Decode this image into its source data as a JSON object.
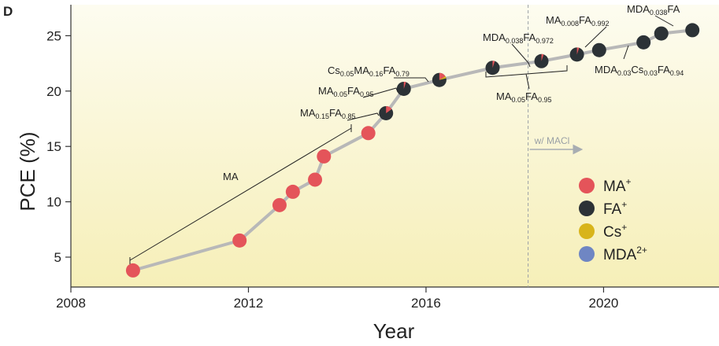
{
  "panel_label": "D",
  "colors": {
    "MA": "#e4545a",
    "FA": "#2c3236",
    "Cs": "#d8b41a",
    "MDA": "#6f86c3",
    "line": "#b8b8b8",
    "bg_top": "#fdfcf0",
    "bg_bottom": "#f6efb8"
  },
  "chart_data": {
    "type": "scatter",
    "xlabel": "Year",
    "ylabel": "PCE (%)",
    "xlim": [
      2008,
      2022.6
    ],
    "ylim": [
      2.3,
      27.8
    ],
    "xticks": [
      "2008",
      "2012",
      "2016",
      "2020"
    ],
    "yticks": [
      "5",
      "10",
      "15",
      "20",
      "25"
    ],
    "grid": false,
    "legend_placement": "bottom-right",
    "points": [
      {
        "x": 2009.4,
        "y": 3.8,
        "cation": "MA"
      },
      {
        "x": 2011.8,
        "y": 6.5,
        "cation": "MA"
      },
      {
        "x": 2012.7,
        "y": 9.7,
        "cation": "MA"
      },
      {
        "x": 2013.0,
        "y": 10.9,
        "cation": "MA"
      },
      {
        "x": 2013.5,
        "y": 12.0,
        "cation": "MA"
      },
      {
        "x": 2013.7,
        "y": 14.1,
        "cation": "MA"
      },
      {
        "x": 2014.7,
        "y": 16.2,
        "cation": "MA"
      },
      {
        "x": 2015.1,
        "y": 18.0,
        "cation": "FA",
        "mix": [
          {
            "c": "MA",
            "f": 0.15
          }
        ]
      },
      {
        "x": 2015.5,
        "y": 20.2,
        "cation": "FA",
        "mix": [
          {
            "c": "MA",
            "f": 0.05
          }
        ]
      },
      {
        "x": 2016.3,
        "y": 21.0,
        "cation": "FA",
        "mix": [
          {
            "c": "MA",
            "f": 0.16
          },
          {
            "c": "Cs",
            "f": 0.05
          }
        ]
      },
      {
        "x": 2017.5,
        "y": 22.1,
        "cation": "FA",
        "mix": [
          {
            "c": "MA",
            "f": 0.05
          }
        ]
      },
      {
        "x": 2018.6,
        "y": 22.7,
        "cation": "FA",
        "mix": [
          {
            "c": "MA",
            "f": 0.05
          }
        ]
      },
      {
        "x": 2019.4,
        "y": 23.3,
        "cation": "FA",
        "mix": [
          {
            "c": "MA",
            "f": 0.05
          }
        ]
      },
      {
        "x": 2019.9,
        "y": 23.7,
        "cation": "FA"
      },
      {
        "x": 2020.9,
        "y": 24.4,
        "cation": "FA"
      },
      {
        "x": 2021.3,
        "y": 25.2,
        "cation": "FA"
      },
      {
        "x": 2022.0,
        "y": 25.5,
        "cation": "FA"
      }
    ],
    "macl_year": 2018.3,
    "macl_label": "w/ MACl",
    "annotations": [
      {
        "id": "ma",
        "parts": [
          [
            "MA",
            false
          ]
        ]
      },
      {
        "id": "ma015",
        "parts": [
          [
            "MA",
            false
          ],
          [
            "0.15",
            true
          ],
          [
            "FA",
            false
          ],
          [
            "0.85",
            true
          ]
        ]
      },
      {
        "id": "ma005a",
        "parts": [
          [
            "MA",
            false
          ],
          [
            "0.05",
            true
          ],
          [
            "FA",
            false
          ],
          [
            "0.95",
            true
          ]
        ]
      },
      {
        "id": "cs",
        "parts": [
          [
            "Cs",
            false
          ],
          [
            "0.05",
            true
          ],
          [
            "MA",
            false
          ],
          [
            "0.16",
            true
          ],
          [
            "FA",
            false
          ],
          [
            "0.79",
            true
          ]
        ]
      },
      {
        "id": "mda972",
        "parts": [
          [
            "MDA",
            false
          ],
          [
            "0.038",
            true
          ],
          [
            "FA",
            false
          ],
          [
            "0.972",
            true
          ]
        ]
      },
      {
        "id": "ma008",
        "parts": [
          [
            "MA",
            false
          ],
          [
            "0.008",
            true
          ],
          [
            "FA",
            false
          ],
          [
            "0.992",
            true
          ]
        ]
      },
      {
        "id": "mdafa",
        "parts": [
          [
            "MDA",
            false
          ],
          [
            "0.038",
            true
          ],
          [
            "FA",
            false
          ]
        ]
      },
      {
        "id": "ma005b",
        "parts": [
          [
            "MA",
            false
          ],
          [
            "0.05",
            true
          ],
          [
            "FA",
            false
          ],
          [
            "0.95",
            true
          ]
        ]
      },
      {
        "id": "mdacs",
        "parts": [
          [
            "MDA",
            false
          ],
          [
            "0.03",
            true
          ],
          [
            "Cs",
            false
          ],
          [
            "0.03",
            true
          ],
          [
            "FA",
            false
          ],
          [
            "0.94",
            true
          ]
        ]
      }
    ],
    "legend": [
      {
        "cation": "MA",
        "label": "MA",
        "sup": "+"
      },
      {
        "cation": "FA",
        "label": "FA",
        "sup": "+"
      },
      {
        "cation": "Cs",
        "label": "Cs",
        "sup": "+"
      },
      {
        "cation": "MDA",
        "label": "MDA",
        "sup": "2+"
      }
    ]
  }
}
